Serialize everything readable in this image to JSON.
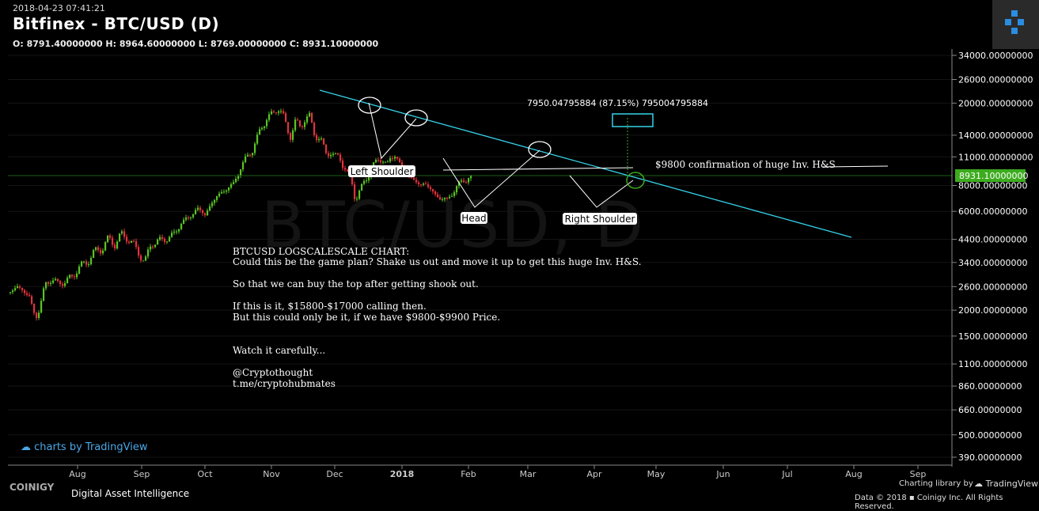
{
  "header": {
    "timestamp": "2018-04-23 07:41:21",
    "title": "Bitfinex - BTC/USD (D)",
    "ohlc": "O: 8791.40000000 H: 8964.60000000 L: 8769.00000000 C: 8931.10000000"
  },
  "watermark": "BTC/USD, D",
  "chart_data": {
    "type": "candlestick",
    "y_scale": "log",
    "ylim": [
      350,
      38000
    ],
    "yticks": [
      "34000.00000000",
      "26000.00000000",
      "20000.00000000",
      "14000.00000000",
      "11000.00000000",
      "8000.00000000",
      "6000.00000000",
      "4400.00000000",
      "3400.00000000",
      "2600.00000000",
      "2000.00000000",
      "1500.00000000",
      "1100.00000000",
      "860.00000000",
      "660.00000000",
      "500.00000000",
      "390.00000000"
    ],
    "ytick_values": [
      34000,
      26000,
      20000,
      14000,
      11000,
      8000,
      6000,
      4400,
      3400,
      2600,
      2000,
      1500,
      1100,
      860,
      660,
      500,
      390
    ],
    "xticks": [
      "Aug",
      "Sep",
      "Oct",
      "Nov",
      "Dec",
      "2018",
      "Feb",
      "Mar",
      "Apr",
      "May",
      "Jun",
      "Jul",
      "Aug",
      "Sep"
    ],
    "last_price": "8931.10000000",
    "price_path": [
      [
        0,
        2450
      ],
      [
        8,
        2600
      ],
      [
        16,
        2500
      ],
      [
        24,
        2300
      ],
      [
        30,
        1950
      ],
      [
        34,
        1850
      ],
      [
        38,
        2100
      ],
      [
        44,
        2700
      ],
      [
        52,
        2800
      ],
      [
        60,
        2700
      ],
      [
        70,
        2750
      ],
      [
        78,
        2900
      ],
      [
        86,
        3200
      ],
      [
        96,
        3400
      ],
      [
        106,
        3800
      ],
      [
        116,
        4000
      ],
      [
        124,
        4400
      ],
      [
        132,
        4200
      ],
      [
        140,
        4600
      ],
      [
        148,
        4500
      ],
      [
        158,
        4000
      ],
      [
        166,
        3600
      ],
      [
        170,
        3400
      ],
      [
        178,
        4200
      ],
      [
        186,
        4300
      ],
      [
        196,
        4400
      ],
      [
        208,
        4700
      ],
      [
        216,
        5300
      ],
      [
        226,
        5600
      ],
      [
        236,
        6200
      ],
      [
        246,
        5800
      ],
      [
        254,
        6500
      ],
      [
        262,
        7200
      ],
      [
        272,
        7600
      ],
      [
        282,
        8200
      ],
      [
        290,
        9500
      ],
      [
        298,
        11000
      ],
      [
        306,
        11800
      ],
      [
        316,
        15000
      ],
      [
        324,
        16800
      ],
      [
        332,
        17800
      ],
      [
        338,
        19200
      ],
      [
        344,
        17500
      ],
      [
        350,
        15000
      ],
      [
        354,
        14000
      ],
      [
        360,
        16000
      ],
      [
        366,
        15500
      ],
      [
        372,
        16800
      ],
      [
        378,
        17000
      ],
      [
        384,
        14500
      ],
      [
        392,
        13200
      ],
      [
        398,
        11500
      ],
      [
        404,
        11800
      ],
      [
        410,
        10800
      ],
      [
        416,
        11200
      ],
      [
        420,
        10200
      ],
      [
        426,
        9000
      ],
      [
        432,
        8200
      ],
      [
        436,
        6900
      ],
      [
        442,
        7500
      ],
      [
        448,
        8500
      ],
      [
        454,
        9200
      ],
      [
        460,
        10200
      ],
      [
        466,
        10800
      ],
      [
        472,
        10500
      ],
      [
        476,
        10000
      ],
      [
        480,
        10800
      ],
      [
        486,
        11200
      ],
      [
        490,
        10600
      ],
      [
        494,
        9800
      ],
      [
        500,
        9300
      ],
      [
        506,
        8700
      ],
      [
        512,
        8400
      ],
      [
        518,
        8000
      ],
      [
        524,
        8200
      ],
      [
        530,
        7800
      ],
      [
        536,
        7200
      ],
      [
        542,
        7000
      ],
      [
        548,
        6900
      ],
      [
        552,
        6800
      ],
      [
        558,
        7300
      ],
      [
        564,
        7900
      ],
      [
        570,
        8300
      ],
      [
        576,
        8600
      ],
      [
        582,
        8931
      ]
    ]
  },
  "annotations": {
    "measure_text": "7950.04795884 (87.15%) 795004795884",
    "confirm_text": "$9800 confirmation of huge Inv. H&S",
    "left_shoulder": "Left Shoulder",
    "head": "Head",
    "right_shoulder": "Right Shoulder",
    "note_lines": [
      "BTCUSD LOGSCALESCALE CHART:",
      "Could this be the game plan? Shake us out and move it up to get this huge Inv. H&S.",
      "",
      "So that we can buy the top after getting shook out.",
      "",
      "If this is it, $15800-$17000 calling then.",
      "But this could only be it, if we have $9800-$9900 Price.",
      "",
      "",
      "Watch it carefully...",
      "",
      "@Cryptothought",
      "t.me/cryptohubmates"
    ]
  },
  "footer": {
    "tv_label": "charts by TradingView",
    "brand": "COINIGY",
    "brand_sub": "Digital Asset Intelligence",
    "charting": "Charting library by",
    "tv_brand": "TradingView",
    "data": "Data © 2018 ▪ Coinigy Inc. All Rights Reserved."
  },
  "colors": {
    "up": "#5ac326",
    "down": "#e0333c",
    "trend": "#35d2e8",
    "accent": "#3dab1f"
  }
}
